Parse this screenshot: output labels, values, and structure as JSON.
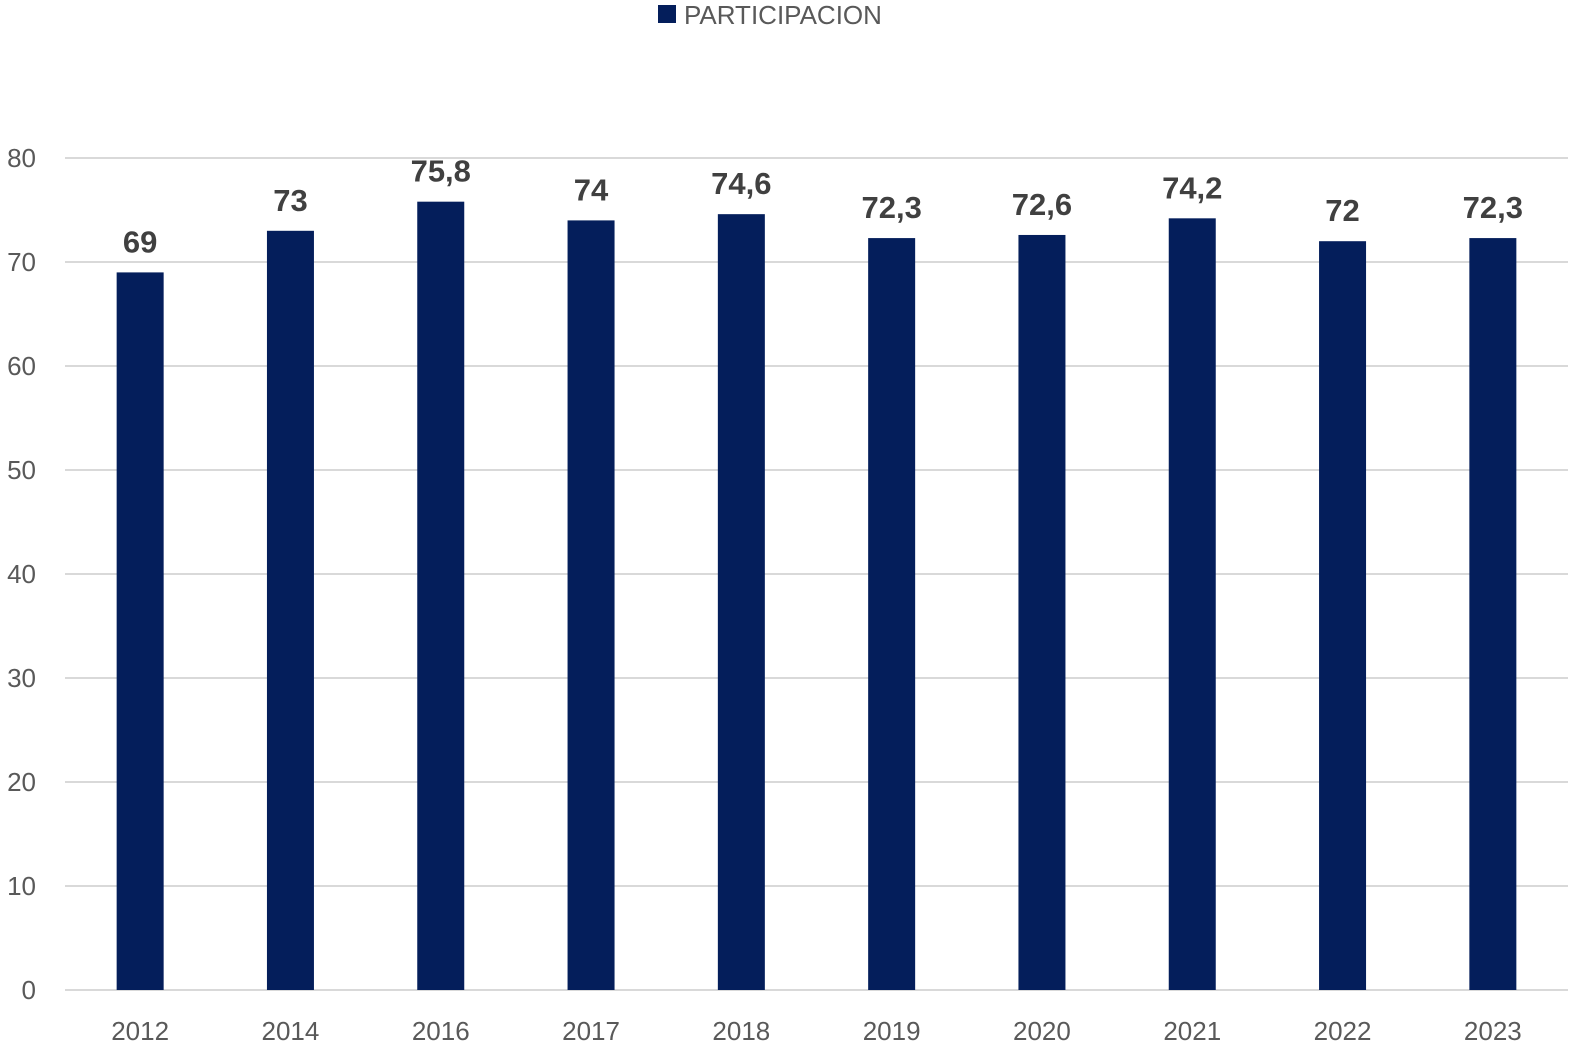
{
  "chart_data": {
    "type": "bar",
    "title": "",
    "xlabel": "",
    "ylabel": "",
    "categories": [
      "2012",
      "2014",
      "2016",
      "2017",
      "2018",
      "2019",
      "2020",
      "2021",
      "2022",
      "2023"
    ],
    "series": [
      {
        "name": "PARTICIPACION",
        "values": [
          69,
          73,
          75.8,
          74,
          74.6,
          72.3,
          72.6,
          74.2,
          72,
          72.3
        ],
        "data_labels": [
          "69",
          "73",
          "75,8",
          "74",
          "74,6",
          "72,3",
          "72,6",
          "74,2",
          "72",
          "72,3"
        ],
        "color": "#041e5b"
      }
    ],
    "ylim": [
      0,
      80
    ],
    "yticks": [
      0,
      10,
      20,
      30,
      40,
      50,
      60,
      70,
      80
    ],
    "grid": true,
    "legend": "top-center"
  }
}
